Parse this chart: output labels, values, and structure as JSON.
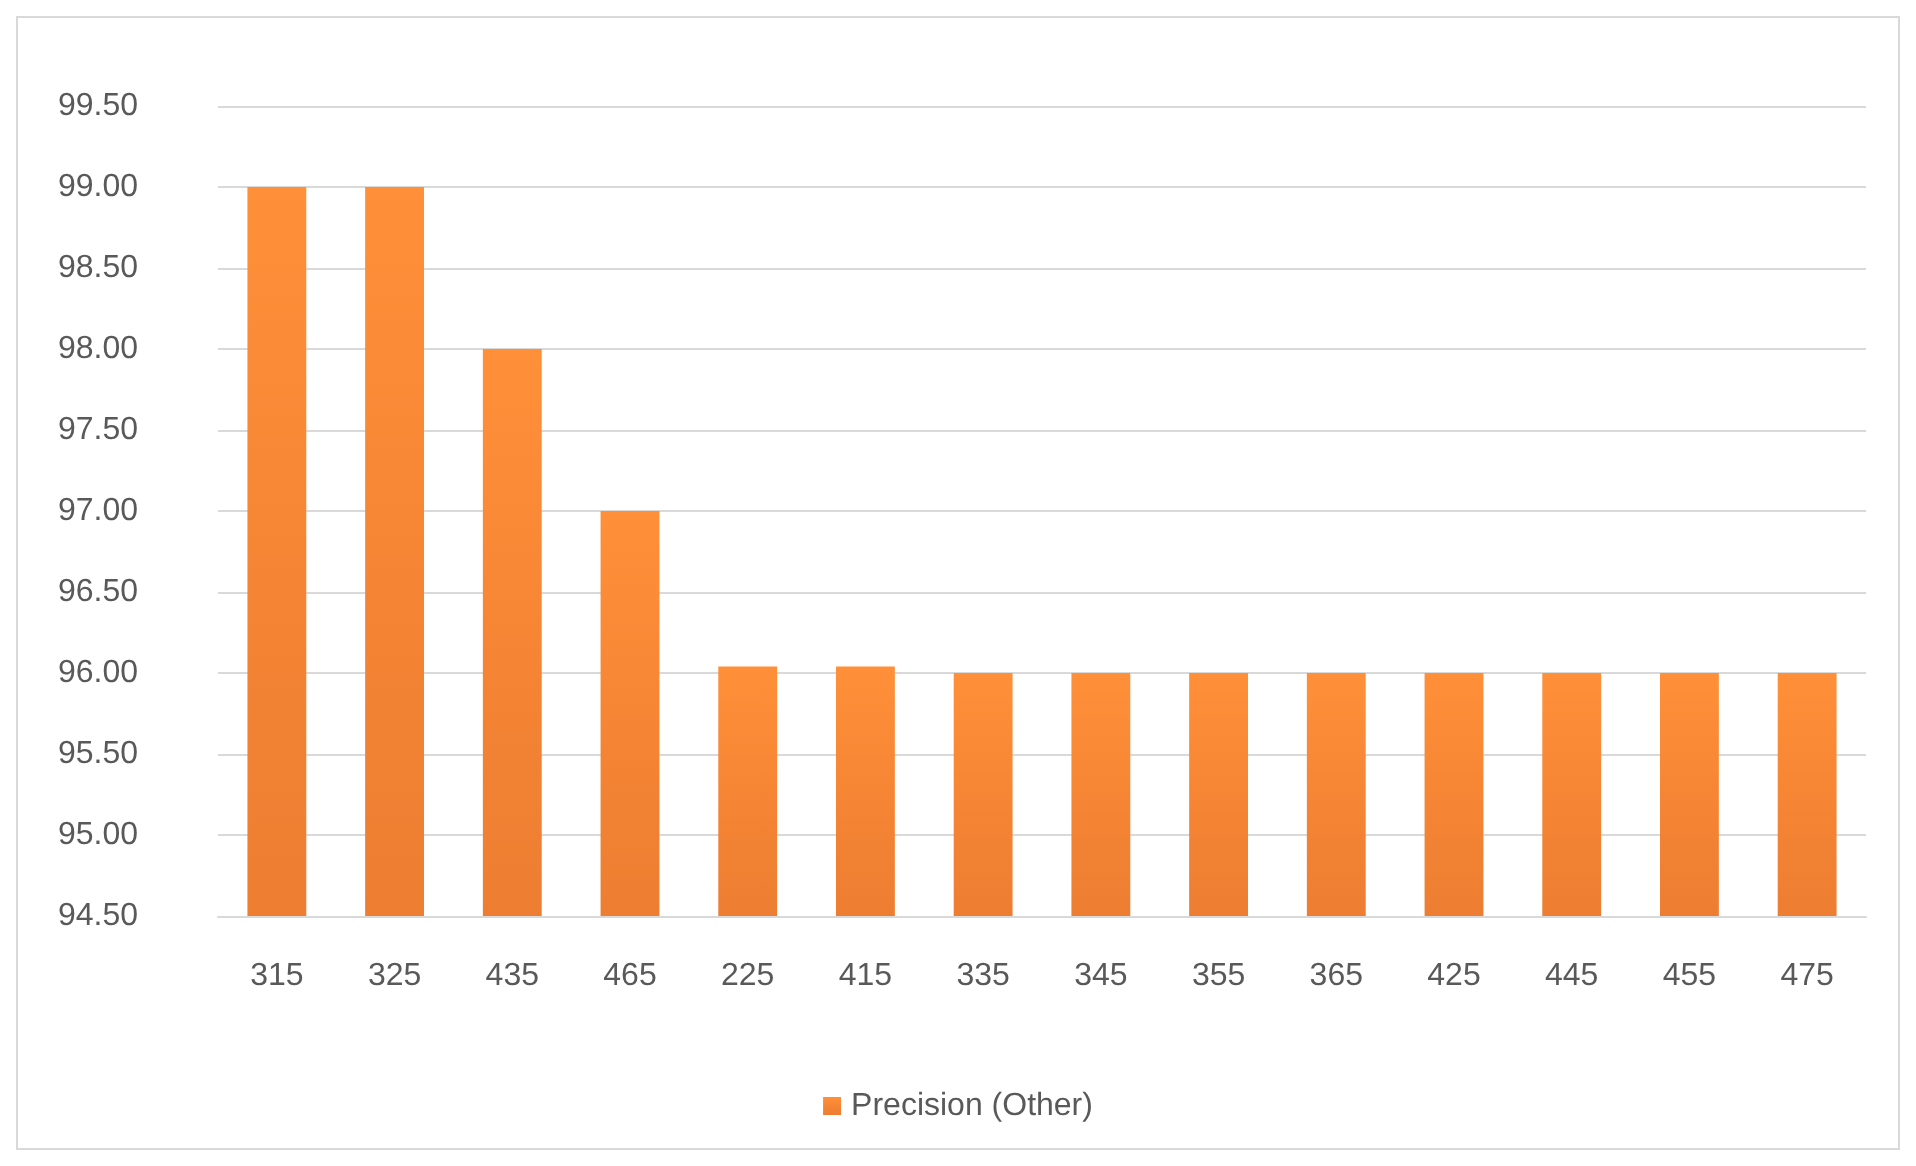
{
  "chart_data": {
    "type": "bar",
    "categories": [
      "315",
      "325",
      "435",
      "465",
      "225",
      "415",
      "335",
      "345",
      "355",
      "365",
      "425",
      "445",
      "455",
      "475"
    ],
    "series": [
      {
        "name": "Precision (Other)",
        "color": "#ed7d31",
        "values": [
          99.0,
          99.0,
          98.0,
          97.0,
          96.04,
          96.04,
          96.0,
          96.0,
          96.0,
          96.0,
          96.0,
          96.0,
          96.0,
          96.0
        ]
      }
    ],
    "ylim": [
      94.5,
      99.5
    ],
    "yticks": [
      {
        "value": 94.5,
        "label": "94.50"
      },
      {
        "value": 95,
        "label": "95.00"
      },
      {
        "value": 95.5,
        "label": "95.50"
      },
      {
        "value": 96,
        "label": "96.00"
      },
      {
        "value": 96.5,
        "label": "96.50"
      },
      {
        "value": 97,
        "label": "97.00"
      },
      {
        "value": 97.5,
        "label": "97.50"
      },
      {
        "value": 98,
        "label": "98.00"
      },
      {
        "value": 98.5,
        "label": "98.50"
      },
      {
        "value": 99,
        "label": "99.00"
      },
      {
        "value": 99.5,
        "label": "99.50"
      }
    ],
    "grid": "y",
    "legend": "bottom"
  }
}
